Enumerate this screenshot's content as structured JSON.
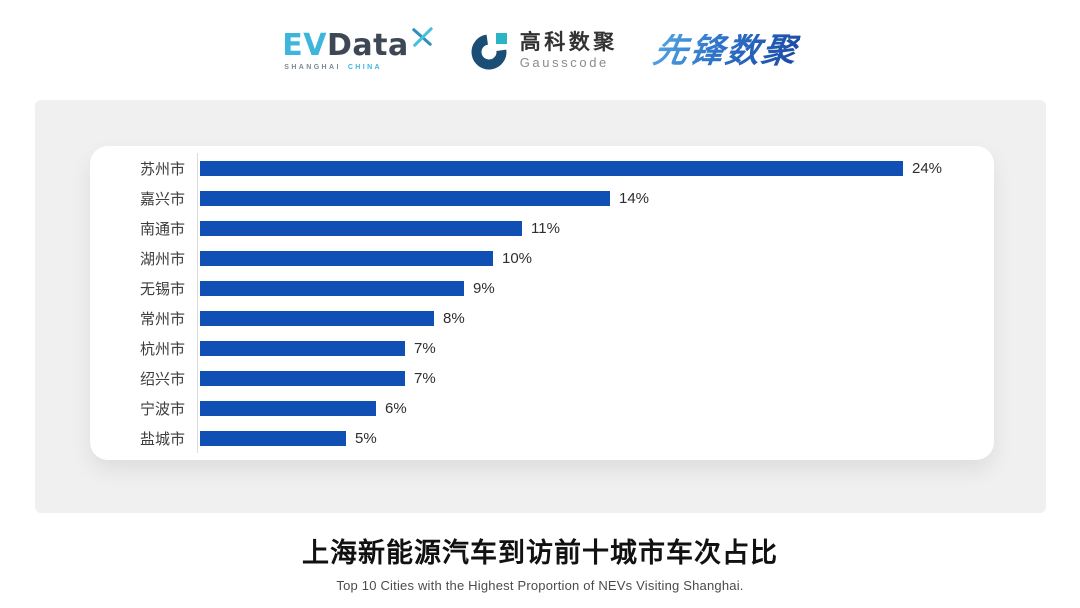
{
  "header": {
    "evdata": {
      "ev": "EV",
      "data": "Data",
      "sub_left": "SHANGHAI",
      "sub_right": "CHINA",
      "color_cyan": "#3eb6dc",
      "color_dark": "#3d4756"
    },
    "gausscode": {
      "cn": "高科数聚",
      "en": "Gausscode",
      "color_navy": "#1a4e74",
      "color_teal": "#2ab5c4"
    },
    "pioneer": {
      "cn": "先锋数聚",
      "color_blue": "#2e72c8"
    }
  },
  "chart_data": {
    "type": "bar",
    "orientation": "horizontal",
    "title": "上海新能源汽车到访前十城市车次占比",
    "subtitle": "Top 10 Cities with the Highest Proportion of  NEVs Visiting Shanghai.",
    "categories": [
      "苏州市",
      "嘉兴市",
      "南通市",
      "湖州市",
      "无锡市",
      "常州市",
      "杭州市",
      "绍兴市",
      "宁波市",
      "盐城市"
    ],
    "values": [
      24,
      14,
      11,
      10,
      9,
      8,
      7,
      7,
      6,
      5
    ],
    "value_labels": [
      "24%",
      "14%",
      "11%",
      "10%",
      "9%",
      "8%",
      "7%",
      "7%",
      "6%",
      "5%"
    ],
    "unit": "%",
    "bar_color": "#104fb4",
    "axis_line_color": "#dcdcdc",
    "xlim": [
      0,
      24
    ],
    "grid": false,
    "legend": false,
    "value_label_position": "end-of-bar"
  },
  "caption": {
    "title_cn": "上海新能源汽车到访前十城市车次占比",
    "title_en": "Top 10 Cities with the Highest Proportion of  NEVs Visiting Shanghai."
  }
}
